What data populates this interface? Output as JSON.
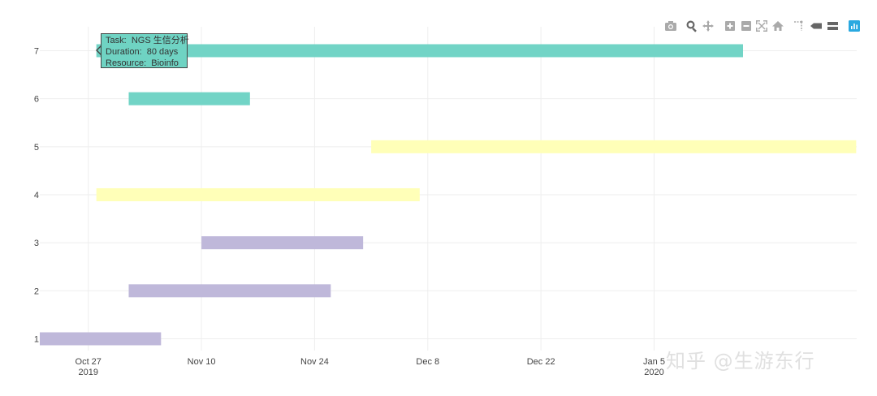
{
  "chart_data": {
    "type": "gantt",
    "y_ticks": [
      "1",
      "2",
      "3",
      "4",
      "5",
      "6",
      "7"
    ],
    "x_ticks": [
      {
        "date": "2019-10-27",
        "label": "Oct 27",
        "sub": "2019"
      },
      {
        "date": "2019-11-10",
        "label": "Nov 10",
        "sub": ""
      },
      {
        "date": "2019-11-24",
        "label": "Nov 24",
        "sub": ""
      },
      {
        "date": "2019-12-08",
        "label": "Dec 8",
        "sub": ""
      },
      {
        "date": "2019-12-22",
        "label": "Dec 22",
        "sub": ""
      },
      {
        "date": "2020-01-05",
        "label": "Jan 5",
        "sub": "2020"
      }
    ],
    "xlim": [
      "2019-10-21",
      "2020-01-16"
    ],
    "bars": [
      {
        "row": 1,
        "start": "2019-10-21",
        "end": "2019-11-05",
        "color": "#bfb8da"
      },
      {
        "row": 2,
        "start": "2019-11-01",
        "end": "2019-11-26",
        "color": "#bfb8da"
      },
      {
        "row": 3,
        "start": "2019-11-10",
        "end": "2019-11-30",
        "color": "#bfb8da"
      },
      {
        "row": 4,
        "start": "2019-10-28",
        "end": "2019-12-07",
        "color": "#ffffb8"
      },
      {
        "row": 5,
        "start": "2019-12-01",
        "end": "2020-01-30",
        "color": "#ffffb8"
      },
      {
        "row": 6,
        "start": "2019-11-01",
        "end": "2019-11-16",
        "color": "#72d4c6"
      },
      {
        "row": 7,
        "start": "2019-10-28",
        "end": "2020-01-16",
        "color": "#72d4c6"
      }
    ],
    "grid": true
  },
  "tooltip": {
    "task_key": "Task:",
    "task_value": "NGS 生信分析",
    "duration_key": "Duration:",
    "duration_value": "80 days",
    "resource_key": "Resource:",
    "resource_value": "Bioinfo"
  },
  "modebar": {
    "icons": [
      "camera-icon",
      "zoom-icon",
      "pan-icon",
      "zoom-in-icon",
      "zoom-out-icon",
      "autoscale-icon",
      "home-icon",
      "spike-lines-icon",
      "hover-closest-icon",
      "hover-compare-icon",
      "plotly-logo-icon"
    ]
  },
  "watermark": "知乎 @生游东行",
  "colors": {
    "accent": "#2aa9e0",
    "icon": "#aaaaaa"
  }
}
